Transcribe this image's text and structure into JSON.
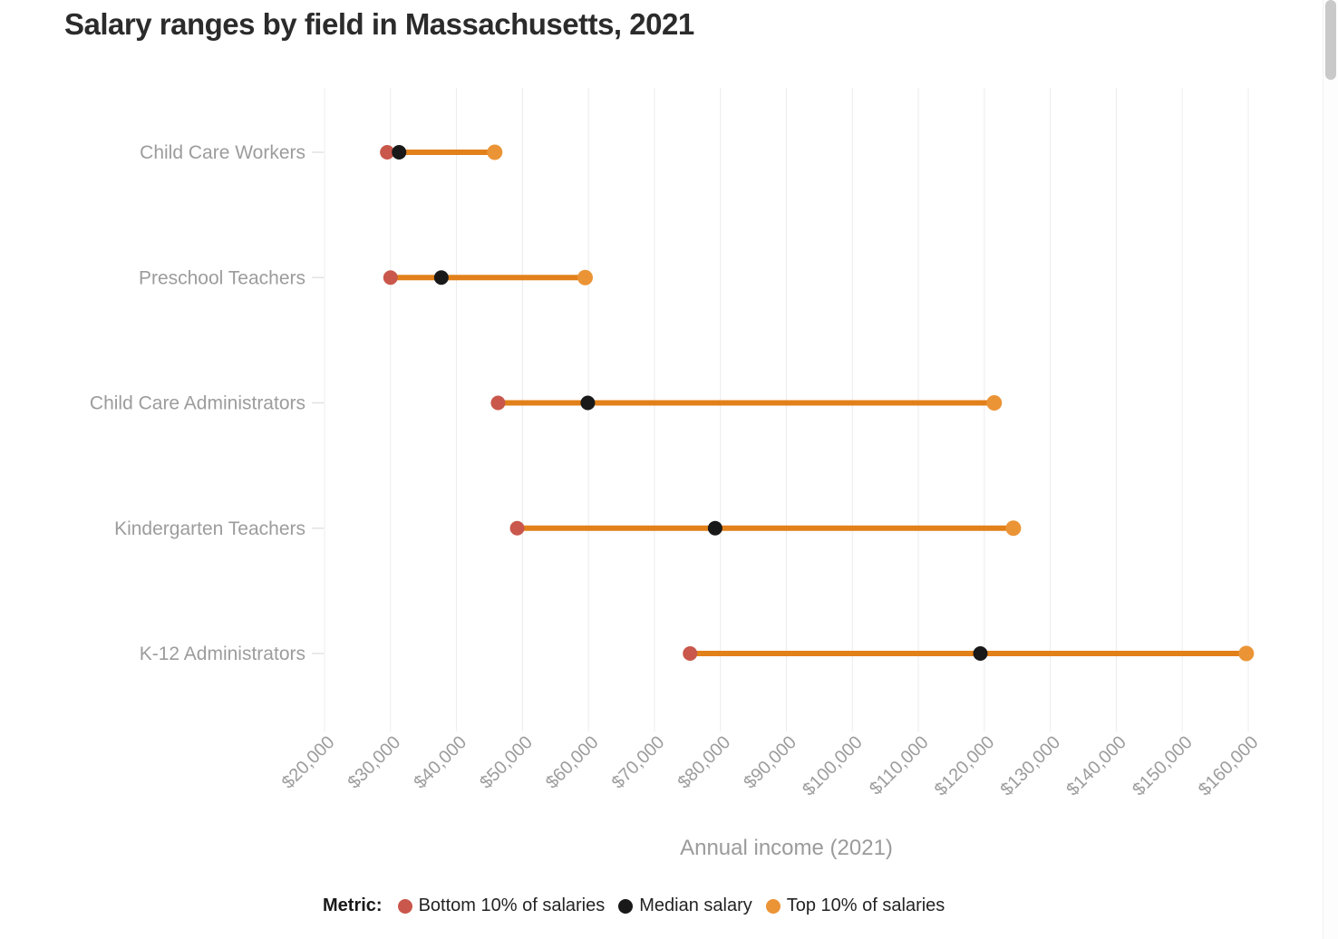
{
  "page": {
    "title": "Salary ranges by field in Massachusetts, 2021"
  },
  "chart_data": {
    "type": "dumbbell-range",
    "orientation": "horizontal",
    "title": "Salary ranges by field in Massachusetts, 2021",
    "xlabel": "Annual income (2021)",
    "categories": [
      "Child Care Workers",
      "Preschool Teachers",
      "Child Care Administrators",
      "Kindergarten Teachers",
      "K-12 Administrators"
    ],
    "series": [
      {
        "name": "Bottom 10% of salaries",
        "color": "#c9574b",
        "values": [
          29500,
          30000,
          46300,
          49200,
          75400
        ]
      },
      {
        "name": "Median salary",
        "color": "#191919",
        "values": [
          31300,
          37700,
          59900,
          79200,
          119400
        ]
      },
      {
        "name": "Top 10% of salaries",
        "color": "#eb9436",
        "values": [
          45800,
          59500,
          121500,
          124400,
          159700
        ]
      }
    ],
    "connector_color": "#e2801a",
    "x_min": 20000,
    "x_max": 160000,
    "tick_step": 10000,
    "x_tick_labels": [
      "$20,000",
      "$30,000",
      "$40,000",
      "$50,000",
      "$60,000",
      "$70,000",
      "$80,000",
      "$90,000",
      "$100,000",
      "$110,000",
      "$120,000",
      "$130,000",
      "$140,000",
      "$150,000",
      "$160,000"
    ],
    "grid": "vertical",
    "legend": {
      "title": "Metric:",
      "position": "bottom"
    },
    "colors": {
      "grid": "#ececec",
      "y_tick": "#e2e2e2",
      "axis_text": "#9c9c9c",
      "title_text": "#2b2b2b"
    }
  }
}
